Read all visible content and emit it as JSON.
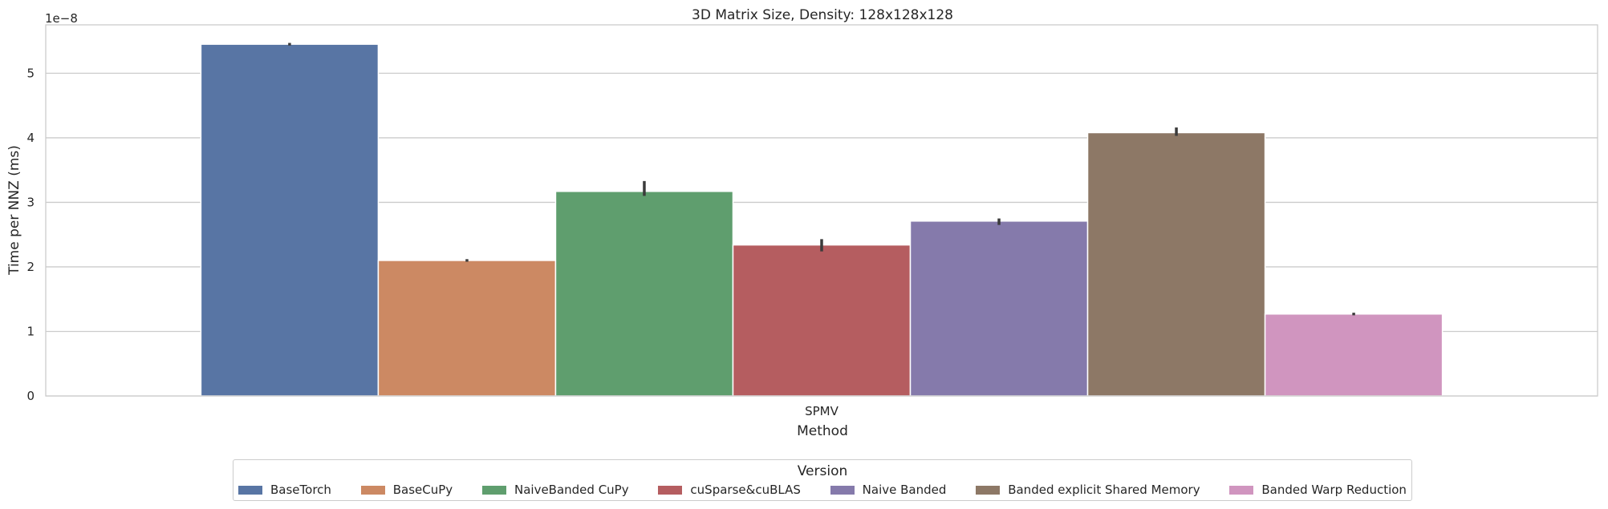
{
  "chart_data": {
    "type": "bar",
    "title": "3D Matrix Size, Density: 128x128x128",
    "xlabel": "Method",
    "ylabel": "Time per NNZ (ms)",
    "y_offset_text": "1e−8",
    "y_scale_factor": 1e-08,
    "categories": [
      "SPMV"
    ],
    "ylim": [
      0,
      5.75
    ],
    "yticks": [
      0,
      1,
      2,
      3,
      4,
      5
    ],
    "grid": true,
    "legend_title": "Version",
    "legend_position": "bottom-center",
    "series": [
      {
        "name": "BaseTorch",
        "values": [
          5.45
        ],
        "error": [
          5.43,
          5.47
        ],
        "color": "#5875a4"
      },
      {
        "name": "BaseCuPy",
        "values": [
          2.1
        ],
        "error": [
          2.08,
          2.12
        ],
        "color": "#cc8963"
      },
      {
        "name": "NaiveBanded CuPy",
        "values": [
          3.17
        ],
        "error": [
          3.1,
          3.33
        ],
        "color": "#5f9e6e"
      },
      {
        "name": "cuSparse&cuBLAS",
        "values": [
          2.34
        ],
        "error": [
          2.24,
          2.43
        ],
        "color": "#b55d60"
      },
      {
        "name": "Naive Banded",
        "values": [
          2.71
        ],
        "error": [
          2.65,
          2.75
        ],
        "color": "#857aab"
      },
      {
        "name": "Banded explicit Shared Memory",
        "values": [
          4.08
        ],
        "error": [
          4.03,
          4.16
        ],
        "color": "#8d7866"
      },
      {
        "name": "Banded Warp Reduction",
        "values": [
          1.27
        ],
        "error": [
          1.25,
          1.29
        ],
        "color": "#d095bf"
      }
    ]
  }
}
